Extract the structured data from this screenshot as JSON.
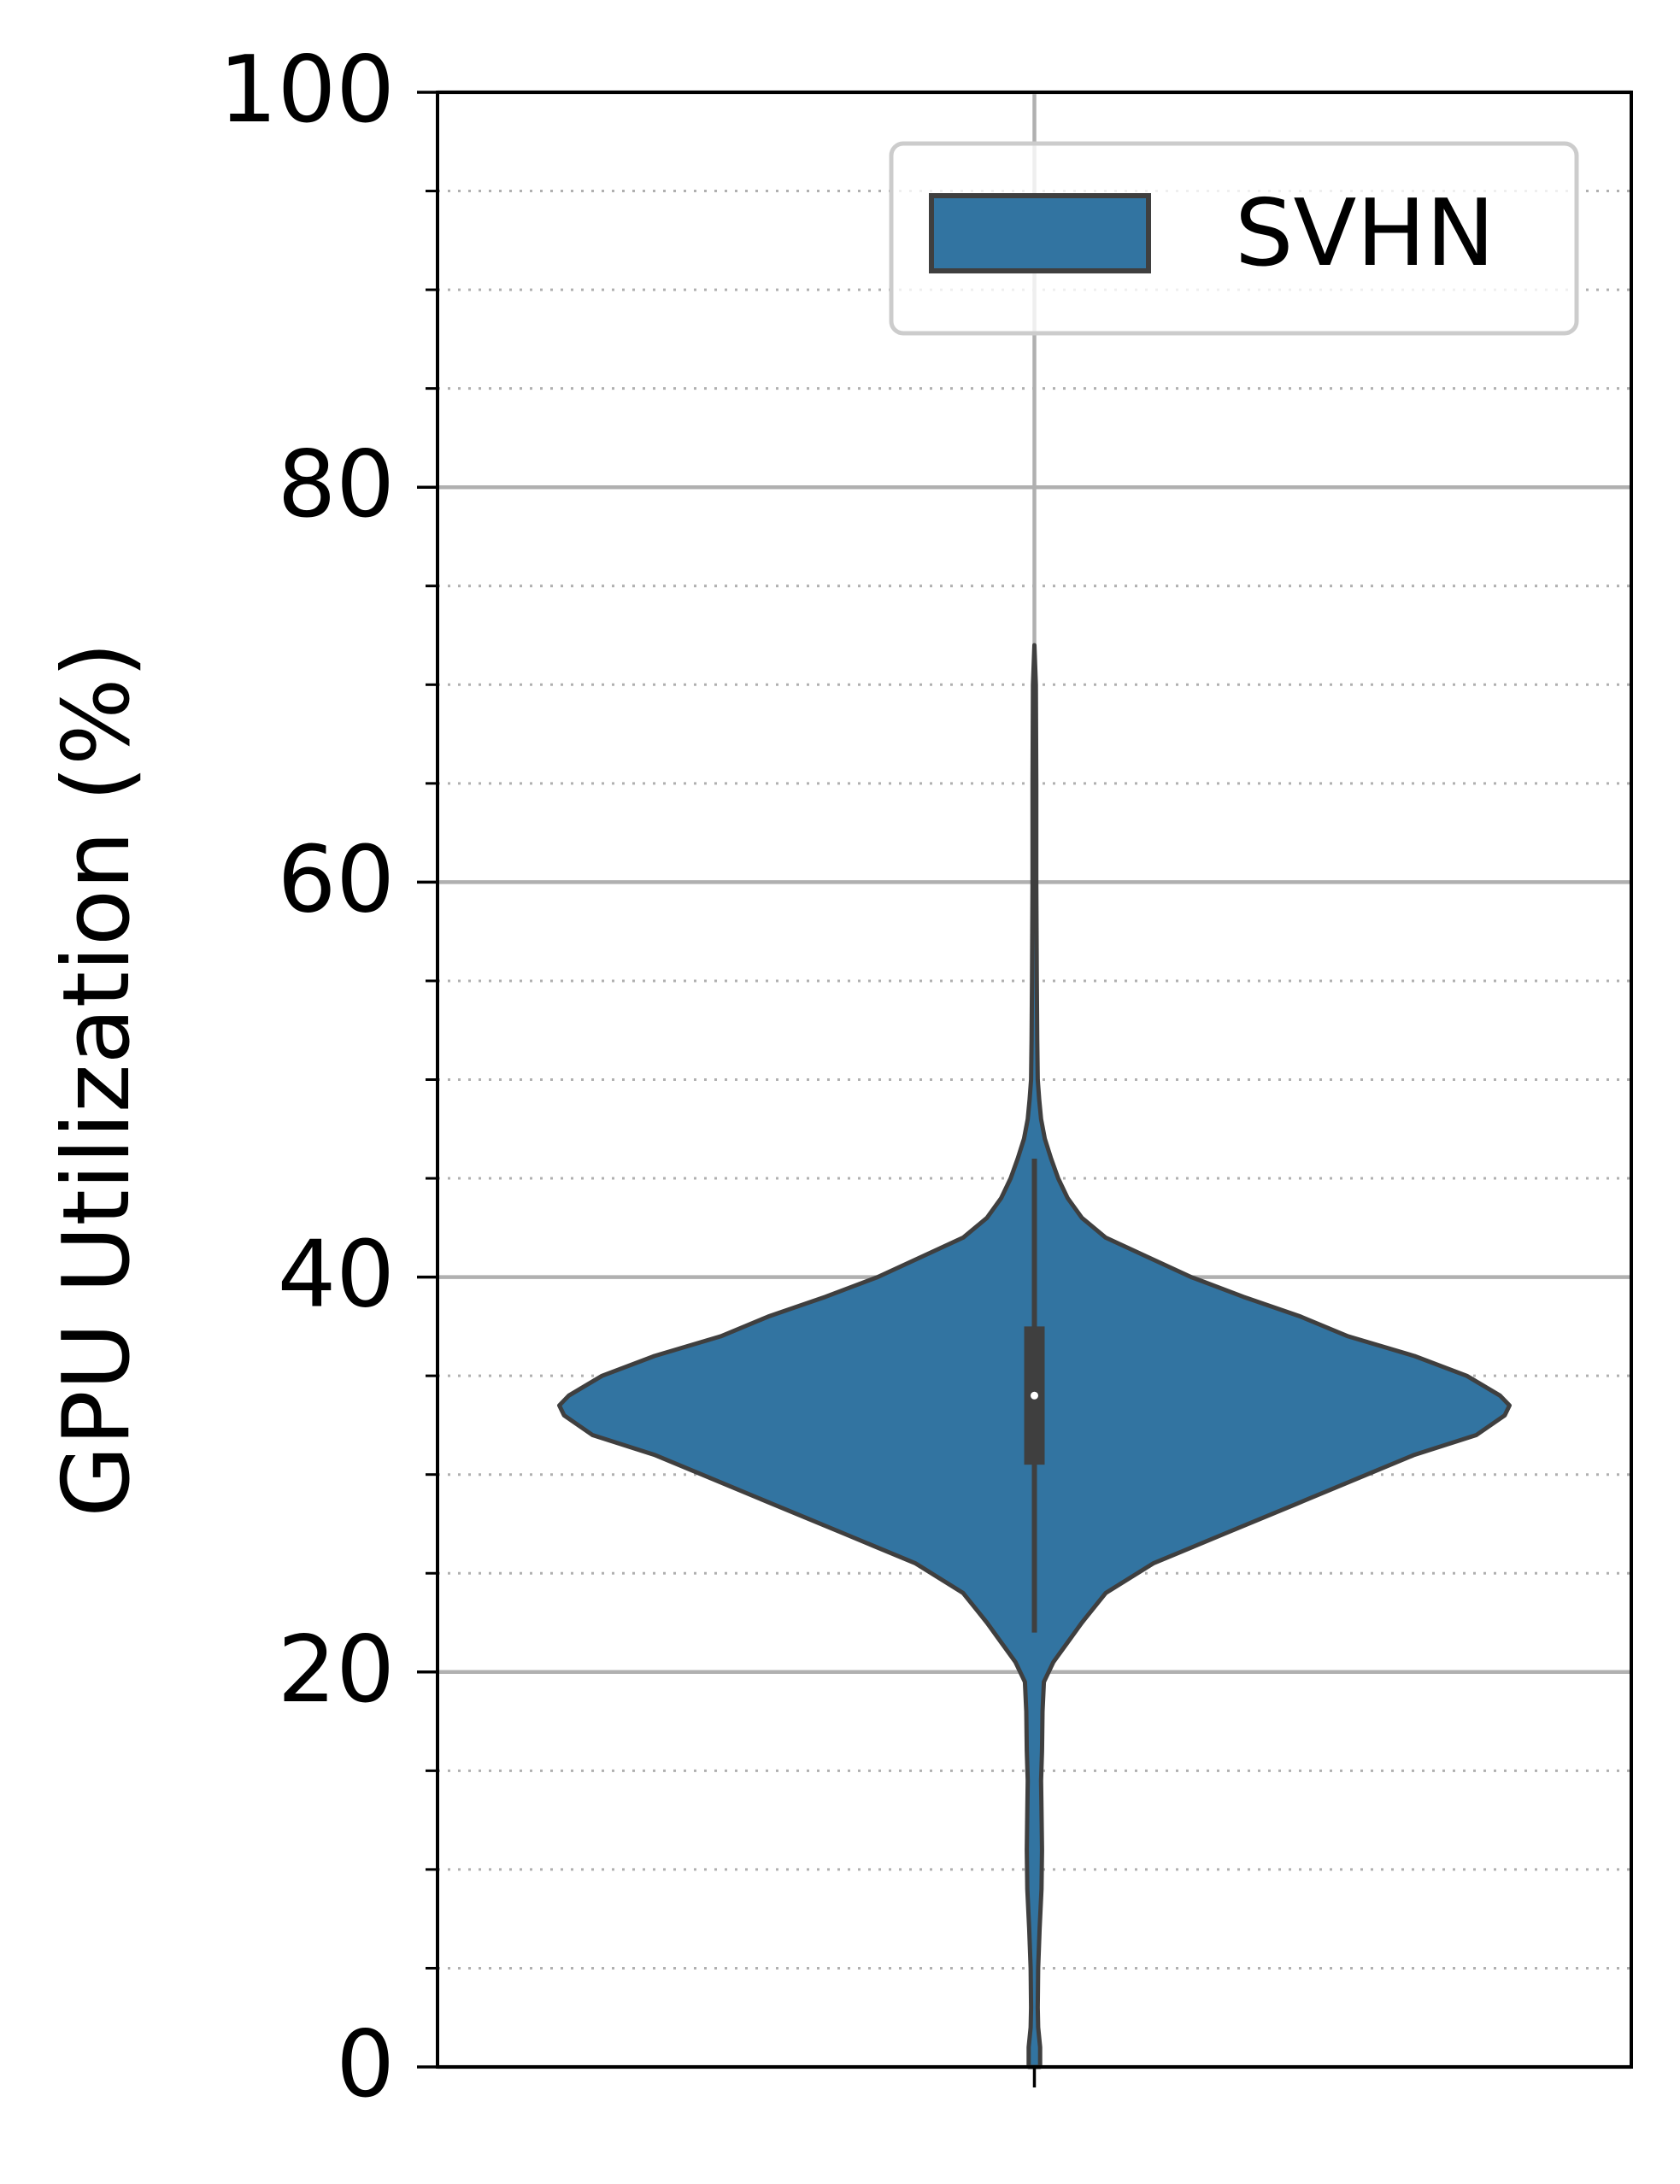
{
  "chart_data": {
    "type": "violin",
    "ylabel": "GPU Utilization (%)",
    "ylim": [
      0,
      100
    ],
    "yticks": [
      0,
      20,
      40,
      60,
      80,
      100
    ],
    "yminor_step": 5,
    "grid": {
      "major": true,
      "minor": "dotted",
      "vertical_center": true
    },
    "legend": {
      "position": "top-right",
      "entries": [
        "SVHN"
      ]
    },
    "series": [
      {
        "name": "SVHN",
        "color": "#3274a1",
        "edge_color": "#3f3f3f",
        "min": 0,
        "q1": 30.5,
        "median": 34,
        "q3": 37.5,
        "whisker_low": 22,
        "whisker_high": 46,
        "max": 72,
        "density_profile": [
          [
            0,
            0.012
          ],
          [
            1,
            0.012
          ],
          [
            2,
            0.008
          ],
          [
            3,
            0.007
          ],
          [
            5,
            0.008
          ],
          [
            7,
            0.011
          ],
          [
            9,
            0.015
          ],
          [
            11,
            0.016
          ],
          [
            13,
            0.015
          ],
          [
            14.5,
            0.014
          ],
          [
            16,
            0.016
          ],
          [
            18,
            0.017
          ],
          [
            19.5,
            0.02
          ],
          [
            20.5,
            0.04
          ],
          [
            21.5,
            0.07
          ],
          [
            22.5,
            0.1
          ],
          [
            24,
            0.15
          ],
          [
            25.5,
            0.25
          ],
          [
            27,
            0.4
          ],
          [
            28.5,
            0.55
          ],
          [
            30,
            0.7
          ],
          [
            31,
            0.8
          ],
          [
            32,
            0.93
          ],
          [
            33,
            0.99
          ],
          [
            33.5,
            1.0
          ],
          [
            34,
            0.98
          ],
          [
            35,
            0.91
          ],
          [
            36,
            0.8
          ],
          [
            37,
            0.66
          ],
          [
            38,
            0.56
          ],
          [
            39,
            0.44
          ],
          [
            40,
            0.33
          ],
          [
            41,
            0.24
          ],
          [
            42,
            0.15
          ],
          [
            43,
            0.1
          ],
          [
            44,
            0.07
          ],
          [
            45,
            0.05
          ],
          [
            46,
            0.035
          ],
          [
            47,
            0.022
          ],
          [
            48,
            0.014
          ],
          [
            49,
            0.01
          ],
          [
            50,
            0.007
          ],
          [
            52,
            0.006
          ],
          [
            55,
            0.005
          ],
          [
            60,
            0.004
          ],
          [
            65,
            0.004
          ],
          [
            70,
            0.003
          ],
          [
            72,
            0
          ]
        ]
      }
    ]
  }
}
